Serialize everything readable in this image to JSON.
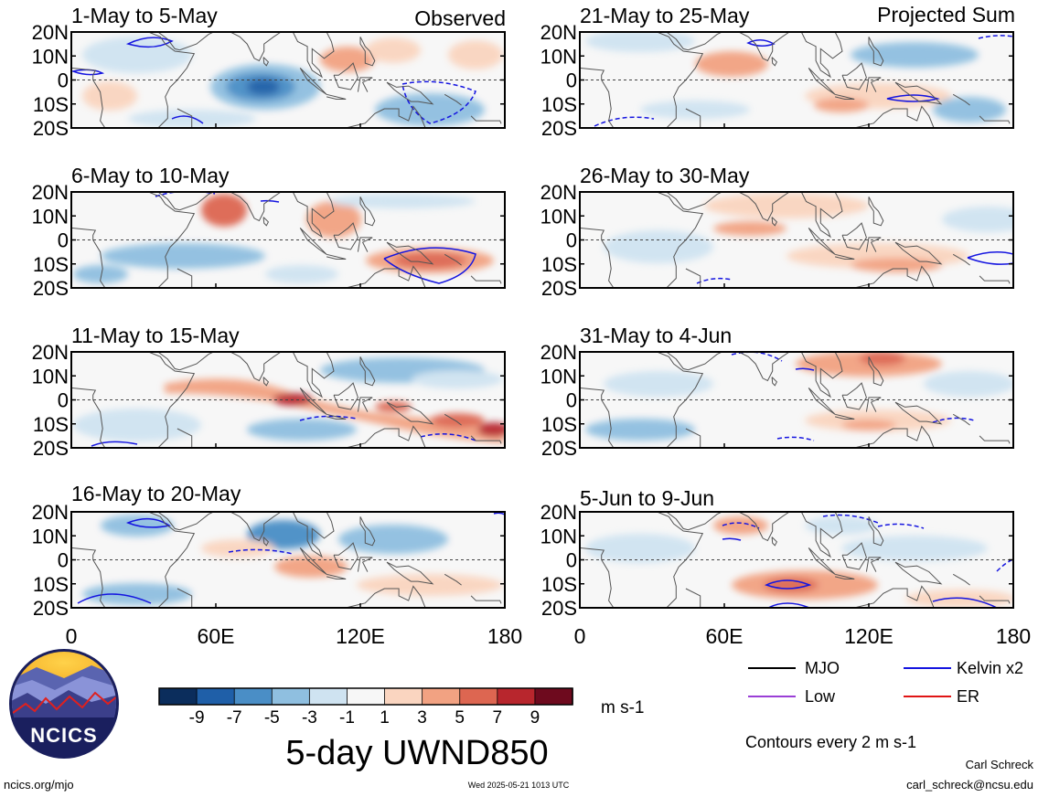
{
  "header": {
    "left_tag": "Observed",
    "right_tag": "Projected Sum"
  },
  "panels": [
    {
      "title": "1-May to 5-May"
    },
    {
      "title": "6-May to 10-May"
    },
    {
      "title": "11-May to 15-May"
    },
    {
      "title": "16-May to 20-May"
    },
    {
      "title": "21-May to 25-May"
    },
    {
      "title": "26-May to 30-May"
    },
    {
      "title": "31-May to 4-Jun"
    },
    {
      "title": "5-Jun to 9-Jun"
    }
  ],
  "axes": {
    "lat_labels": [
      "20N",
      "10N",
      "0",
      "10S",
      "20S"
    ],
    "lon_labels": [
      "0",
      "60E",
      "120E",
      "180"
    ],
    "lat_range": [
      -20,
      20
    ],
    "lon_range": [
      0,
      180
    ]
  },
  "colorbar": {
    "tick_labels": [
      "-9",
      "-7",
      "-5",
      "-3",
      "-1",
      "1",
      "3",
      "5",
      "7",
      "9"
    ],
    "unit": "m s-1",
    "colors": [
      "#0b2d5c",
      "#1f5fa8",
      "#4a8ec6",
      "#8fbfe0",
      "#cfe3f1",
      "#f7f7f7",
      "#fad5c0",
      "#f2a282",
      "#dd6651",
      "#b8262d",
      "#6e0a1e"
    ]
  },
  "main_title": "5-day UWND850",
  "legend": {
    "items": [
      {
        "label": "MJO",
        "color": "#000000"
      },
      {
        "label": "Kelvin x2",
        "color": "#1515e0"
      },
      {
        "label": "Low",
        "color": "#9a3fd6"
      },
      {
        "label": "ER",
        "color": "#e01515"
      }
    ],
    "note": "Contours every 2 m s-1"
  },
  "logo": {
    "text": "NCICS"
  },
  "footer": {
    "left": "ncics.org/mjo",
    "center": "Wed 2025-05-21 1013 UTC",
    "author": "Carl Schreck",
    "email": "carl_schreck@ncsu.edu"
  }
}
